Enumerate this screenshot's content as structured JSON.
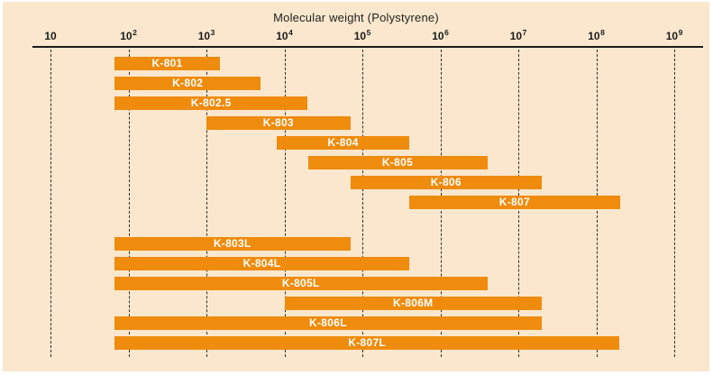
{
  "chart_data": {
    "type": "bar",
    "subtype": "horizontal-range-bars",
    "title": "Molecular weight (Polystyrene)",
    "x_scale": "log",
    "x_min": 10,
    "x_max": 1000000000,
    "grid": "dashed-vertical-per-decade",
    "legend": "none",
    "ticks": [
      {
        "base": "10",
        "exp": ""
      },
      {
        "base": "10",
        "exp": "2"
      },
      {
        "base": "10",
        "exp": "3"
      },
      {
        "base": "10",
        "exp": "4"
      },
      {
        "base": "10",
        "exp": "5"
      },
      {
        "base": "10",
        "exp": "6"
      },
      {
        "base": "10",
        "exp": "7"
      },
      {
        "base": "10",
        "exp": "8"
      },
      {
        "base": "10",
        "exp": "9"
      }
    ],
    "series": [
      {
        "name": "K-801",
        "group": 1,
        "range": [
          66,
          1500
        ]
      },
      {
        "name": "K-802",
        "group": 1,
        "range": [
          66,
          5000
        ]
      },
      {
        "name": "K-802.5",
        "group": 1,
        "range": [
          66,
          20000
        ]
      },
      {
        "name": "K-803",
        "group": 1,
        "range": [
          1000,
          70000
        ]
      },
      {
        "name": "K-804",
        "group": 1,
        "range": [
          8000,
          400000
        ]
      },
      {
        "name": "K-805",
        "group": 1,
        "range": [
          20000,
          4000000
        ]
      },
      {
        "name": "K-806",
        "group": 1,
        "range": [
          70000,
          20000000
        ]
      },
      {
        "name": "K-807",
        "group": 1,
        "range": [
          400000,
          200000000
        ]
      },
      {
        "name": "K-803L",
        "group": 2,
        "range": [
          66,
          70000
        ]
      },
      {
        "name": "K-804L",
        "group": 2,
        "range": [
          66,
          400000
        ]
      },
      {
        "name": "K-805L",
        "group": 2,
        "range": [
          66,
          4000000
        ]
      },
      {
        "name": "K-806M",
        "group": 2,
        "range": [
          10000,
          20000000
        ]
      },
      {
        "name": "K-806L",
        "group": 2,
        "range": [
          66,
          20000000
        ]
      },
      {
        "name": "K-807L",
        "group": 2,
        "range": [
          66,
          200000000
        ]
      }
    ],
    "colors": {
      "bar": "#EF8B0D",
      "bar_label": "#ffffff",
      "background": "#FAE7CD",
      "frame": "#ffffff",
      "axis": "#1b1b1b",
      "gridline": "#2e2e2e"
    }
  }
}
